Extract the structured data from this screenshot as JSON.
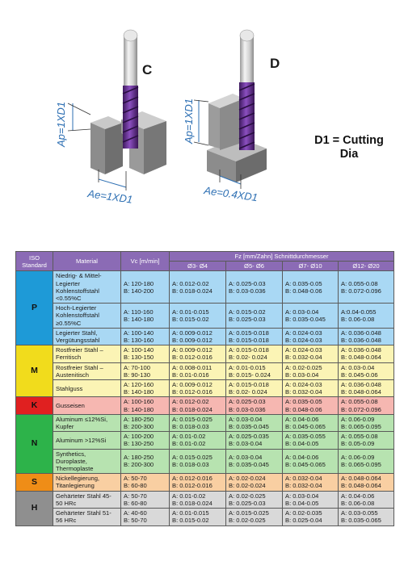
{
  "illustration": {
    "left_label": "C",
    "right_label": "D",
    "left_ap": "Ap=1XD1",
    "left_ae": "Ae=1XD1",
    "right_ap": "Ap=1XD1",
    "right_ae": "Ae=0.4XD1",
    "note_line1": "D1 = Cutting",
    "note_line2": "Dia"
  },
  "table": {
    "headers": {
      "iso": "ISO Standard",
      "material": "Material",
      "vc": "Vc [m/min]",
      "fz": "Fz [mm/Zahn] Schnittdurchmesser",
      "d1": "Ø3- Ø4",
      "d2": "Ø5- Ø6",
      "d3": "Ø7- Ø10",
      "d4": "Ø12- Ø20"
    },
    "groups": [
      {
        "iso": "P",
        "rows": [
          {
            "material": "Niedrig- & Mittel-Legierter Kohlenstoffstahl <0.55%C",
            "vc": [
              "A: 120-180",
              "B: 140-200"
            ],
            "d1": [
              "A: 0.012-0.02",
              "B: 0.018-0.024"
            ],
            "d2": [
              "A: 0.025-0.03",
              "B: 0.03-0.036"
            ],
            "d3": [
              "A: 0.035-0.05",
              "B: 0.048-0.06"
            ],
            "d4": [
              "A: 0.055-0.08",
              "B: 0.072-0.096"
            ]
          },
          {
            "material": "Hoch-Legierter Kohlenstoffstahl ≥0.55%C",
            "vc": [
              "A: 110-160",
              "B: 140-180"
            ],
            "d1": [
              "A: 0.01-0.015",
              "B: 0.015-0.02"
            ],
            "d2": [
              "A: 0.015-0.02",
              "B: 0.025-0.03"
            ],
            "d3": [
              "A: 0.03-0.04",
              "B: 0.035-0.045"
            ],
            "d4": [
              "A:0.04-0.055",
              "B: 0.06-0.08"
            ]
          },
          {
            "material": "Legierter Stahl, Vergütungsstahl",
            "vc": [
              "A: 100-140",
              "B: 130-160"
            ],
            "d1": [
              "A: 0.009-0.012",
              "B: 0.009-0.012"
            ],
            "d2": [
              "A: 0.015-0.018",
              "B: 0.015-0.018"
            ],
            "d3": [
              "A: 0.024-0.03",
              "B: 0.024-0.03"
            ],
            "d4": [
              "A: 0.036-0.048",
              "B: 0.036-0.048"
            ]
          }
        ]
      },
      {
        "iso": "M",
        "rows": [
          {
            "material": "Rostfreier Stahl – Ferritisch",
            "vc": [
              "A: 100-140",
              "B: 130-150"
            ],
            "d1": [
              "A: 0.009-0.012",
              "B: 0.012-0.016"
            ],
            "d2": [
              "A: 0.015-0.018",
              "B: 0.02- 0.024"
            ],
            "d3": [
              "A: 0.024-0.03",
              "B: 0.032-0.04"
            ],
            "d4": [
              "A: 0.036-0.048",
              "B: 0.048-0.064"
            ]
          },
          {
            "material": "Rostfreier Stahl – Austenitisch",
            "vc": [
              "A: 70-100",
              "B: 90-130"
            ],
            "d1": [
              "A: 0.008-0.011",
              "B: 0.01-0.016"
            ],
            "d2": [
              "A: 0.01-0.015",
              "B: 0.015- 0.024"
            ],
            "d3": [
              "A: 0.02-0.025",
              "B: 0.03-0.04"
            ],
            "d4": [
              "A: 0.03-0.04",
              "B: 0.045-0.06"
            ]
          },
          {
            "material": "Stahlguss",
            "vc": [
              "A: 120-160",
              "B: 140-180"
            ],
            "d1": [
              "A: 0.009-0.012",
              "B: 0.012-0.016"
            ],
            "d2": [
              "A: 0.015-0.018",
              "B: 0.02- 0.024"
            ],
            "d3": [
              "A: 0.024-0.03",
              "B: 0.032-0.04"
            ],
            "d4": [
              "A: 0.036-0.048",
              "B: 0.048-0.064"
            ]
          }
        ]
      },
      {
        "iso": "K",
        "rows": [
          {
            "material": "Gusseisen",
            "vc": [
              "A: 100-160",
              "B: 140-180"
            ],
            "d1": [
              "A: 0.012-0.02",
              "B: 0.018-0.024"
            ],
            "d2": [
              "A: 0.025-0.03",
              "B: 0.03-0.036"
            ],
            "d3": [
              "A: 0.035-0.05",
              "B: 0.048-0.06"
            ],
            "d4": [
              "A: 0.055-0.08",
              "B: 0.072-0.096"
            ]
          }
        ]
      },
      {
        "iso": "N",
        "rows": [
          {
            "material": "Aluminum ≤12%Si, Kupfer",
            "vc": [
              "A: 180-250",
              "B: 200-300"
            ],
            "d1": [
              "A: 0.015-0.025",
              "B: 0.018-0.03"
            ],
            "d2": [
              "A: 0.03-0.04",
              "B: 0.035-0.045"
            ],
            "d3": [
              "A: 0.04-0.06",
              "B: 0.045-0.065"
            ],
            "d4": [
              "A: 0.06-0.09",
              "B: 0.065-0.095"
            ]
          },
          {
            "material": "Aluminum >12%Si",
            "vc": [
              "A: 100-200",
              "B: 130-250"
            ],
            "d1": [
              "A: 0.01-0.02",
              "B: 0.01-0.02"
            ],
            "d2": [
              "A: 0.025-0.035",
              "B: 0.03-0.04"
            ],
            "d3": [
              "A: 0.035-0.055",
              "B: 0.04-0.05"
            ],
            "d4": [
              "A: 0.055-0.08",
              "B: 0.05-0.09"
            ]
          },
          {
            "material": "Synthetics, Duroplaste, Thermoplaste",
            "vc": [
              "A: 180-250",
              "B: 200-300"
            ],
            "d1": [
              "A: 0.015-0.025",
              "B: 0.018-0.03"
            ],
            "d2": [
              "A: 0.03-0.04",
              "B: 0.035-0.045"
            ],
            "d3": [
              "A: 0.04-0.06",
              "B: 0.045-0.065"
            ],
            "d4": [
              "A: 0.06-0.09",
              "B: 0.065-0.095"
            ]
          }
        ]
      },
      {
        "iso": "S",
        "rows": [
          {
            "material": "Nickellegierung, Titanlegierung",
            "vc": [
              "A: 50-70",
              "B: 60-80"
            ],
            "d1": [
              "A: 0.012-0.016",
              "B: 0.012-0.016"
            ],
            "d2": [
              "A: 0.02-0.024",
              "B: 0.02-0.024"
            ],
            "d3": [
              "A: 0.032-0.04",
              "B: 0.032-0.04"
            ],
            "d4": [
              "A: 0.048-0.064",
              "B: 0.048-0.064"
            ]
          }
        ]
      },
      {
        "iso": "H",
        "rows": [
          {
            "material": "Gehärteter Stahl 45-50 HRc",
            "vc": [
              "A: 50-70",
              "B: 60-80"
            ],
            "d1": [
              "A: 0.01-0.02",
              "B: 0.018-0.024"
            ],
            "d2": [
              "A: 0.02-0.025",
              "B: 0.025-0.03"
            ],
            "d3": [
              "A: 0.03-0.04",
              "B: 0.04-0.05"
            ],
            "d4": [
              "A: 0.04-0.06",
              "B: 0.06-0.08"
            ]
          },
          {
            "material": "Gehärteter Stahl 51-56 HRc",
            "vc": [
              "A: 40-60",
              "B: 50-70"
            ],
            "d1": [
              "A: 0.01-0.015",
              "B: 0.015-0.02"
            ],
            "d2": [
              "A: 0.015-0.025",
              "B: 0.02-0.025"
            ],
            "d3": [
              "A: 0.02-0.035",
              "B: 0.025-0.04"
            ],
            "d4": [
              "A: 0.03-0.055",
              "B: 0.035-0.065"
            ]
          }
        ]
      }
    ]
  }
}
